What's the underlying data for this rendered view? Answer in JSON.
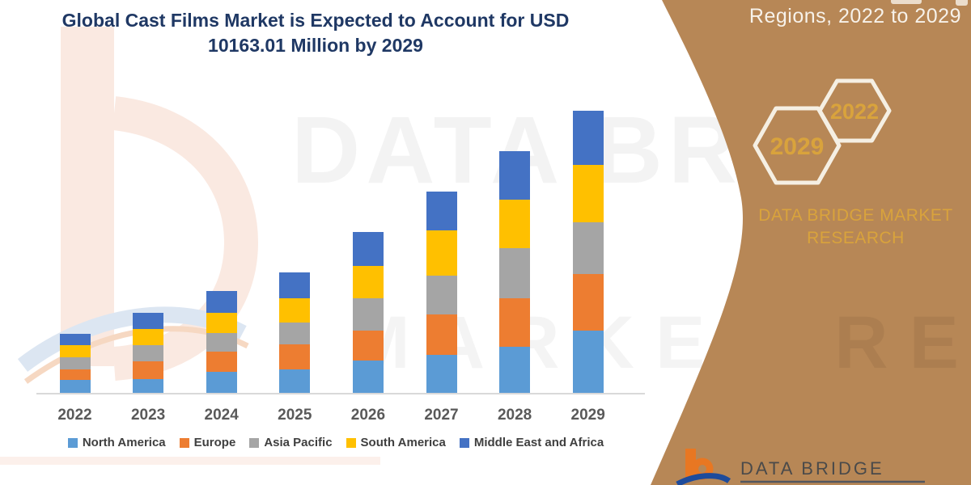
{
  "page": {
    "background": "#FFFFFF"
  },
  "header": {
    "title_line1": "Global Cast Films Market is Expected to Account for USD",
    "title_line2": "10163.01 Million by 2029",
    "title_color": "#1F3864"
  },
  "right_panel": {
    "background_color": "#B78756",
    "caption": "Regions, 2022 to 2029",
    "hexagon_labels": [
      "2029",
      "2022"
    ],
    "hexagon_outline_color": "#F5EFE3",
    "brand_line1": "DATA BRIDGE MARKET",
    "brand_line2": "RESEARCH",
    "accent_gold": "#D9A33C"
  },
  "watermark": {
    "row1": "DATA BRIDGE",
    "row2": "MARKET RESEARCH"
  },
  "footer_logo": {
    "text": "DATA BRIDGE"
  },
  "chart_data": {
    "type": "bar",
    "stacked": true,
    "title": "Global Cast Films Market is Expected to Account for USD 10163.01 Million by 2029",
    "unit": "USD Million",
    "categories": [
      "2022",
      "2023",
      "2024",
      "2025",
      "2026",
      "2027",
      "2028",
      "2029"
    ],
    "series": [
      {
        "name": "North America",
        "color": "#5B9BD5",
        "values": [
          494,
          523,
          784,
          871,
          1191,
          1394,
          1684,
          2265
        ]
      },
      {
        "name": "Europe",
        "color": "#ED7D31",
        "values": [
          378,
          639,
          726,
          900,
          1074,
          1452,
          1742,
          2033
        ]
      },
      {
        "name": "Asia Pacific",
        "color": "#A5A5A5",
        "values": [
          436,
          581,
          668,
          784,
          1162,
          1394,
          1800,
          1859
        ]
      },
      {
        "name": "South America",
        "color": "#FFC000",
        "values": [
          436,
          581,
          726,
          871,
          1162,
          1626,
          1742,
          2062
        ]
      },
      {
        "name": "Middle East and Africa",
        "color": "#4472C4",
        "values": [
          407,
          581,
          784,
          929,
          1220,
          1394,
          1742,
          1944.01
        ]
      }
    ],
    "totals": [
      2151,
      2905,
      3688,
      4355,
      5809,
      7260,
      8710,
      10163.01
    ],
    "value_estimation": "series values estimated from bar heights; only the 2029 total (USD 10163.01 million) is stated on the image",
    "xlabel": "",
    "ylabel": "",
    "y_axis_visible": false,
    "grid": false,
    "legend_position": "bottom",
    "ylim": [
      0,
      10500
    ]
  }
}
